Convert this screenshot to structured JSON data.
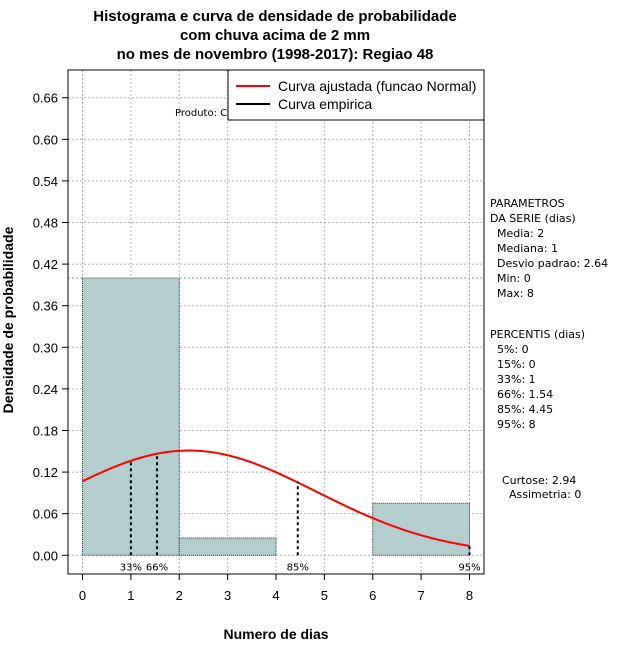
{
  "chart_data": {
    "type": "bar",
    "title_lines": [
      "Histograma e curva de densidade de probabilidade",
      "com chuva acima de 2 mm",
      "no mes de novembro (1998-2017): Regiao 48"
    ],
    "xlabel": "Numero de dias",
    "ylabel": "Densidade de probabilidade",
    "xlim": [
      -0.3,
      8.3
    ],
    "ylim": [
      -0.027,
      0.7
    ],
    "x_ticks": [
      0,
      1,
      2,
      3,
      4,
      5,
      6,
      7,
      8
    ],
    "y_ticks": [
      0.0,
      0.06,
      0.12,
      0.18,
      0.24,
      0.3,
      0.36,
      0.42,
      0.48,
      0.54,
      0.6,
      0.66
    ],
    "y_tick_labels": [
      "0.00",
      "0.06",
      "0.12",
      "0.18",
      "0.24",
      "0.30",
      "0.36",
      "0.42",
      "0.48",
      "0.54",
      "0.60",
      "0.66"
    ],
    "grid": true,
    "bins": [
      {
        "start": 0,
        "end": 2,
        "density": 0.4
      },
      {
        "start": 2,
        "end": 4,
        "density": 0.025
      },
      {
        "start": 4,
        "end": 6,
        "density": 0.0
      },
      {
        "start": 6,
        "end": 8,
        "density": 0.075
      }
    ],
    "reference_line_y": 0.4,
    "normal_curve": {
      "mean": 2.2,
      "sd": 2.64,
      "x_from": 0,
      "x_to": 8,
      "color": "#ff0000"
    },
    "percentile_lines": [
      {
        "x": 1.0,
        "label": "33%"
      },
      {
        "x": 1.54,
        "label": "66%"
      },
      {
        "x": 4.45,
        "label": "85%"
      },
      {
        "x": 8.0,
        "label": "95%"
      }
    ],
    "legend": {
      "position": "top-right",
      "entries": [
        {
          "label": "Curva ajustada (funcao Normal)",
          "color": "#ff0000"
        },
        {
          "label": "Curva empirica",
          "color": "#000000"
        }
      ]
    },
    "watermark": "Produto: CPTEC/INPE"
  },
  "panels": {
    "params": [
      "PARAMETROS",
      "DA SERIE (dias)",
      "  Media: 2",
      "  Mediana: 1",
      "  Desvio padrao: 2.64",
      "  Min: 0",
      "  Max: 8"
    ],
    "percentis": [
      "PERCENTIS (dias)",
      "  5%: 0",
      "  15%: 0",
      "  33%: 1",
      "  66%: 1.54",
      "  85%: 4.45",
      "  95%: 8"
    ],
    "moments": [
      "Curtose: 2.94",
      "  Assimetria: 0"
    ]
  },
  "colors": {
    "bar_fill": "#b4cdcd",
    "curve": "#ff0000",
    "grid": "#b3b3b3",
    "axis": "#000000"
  }
}
